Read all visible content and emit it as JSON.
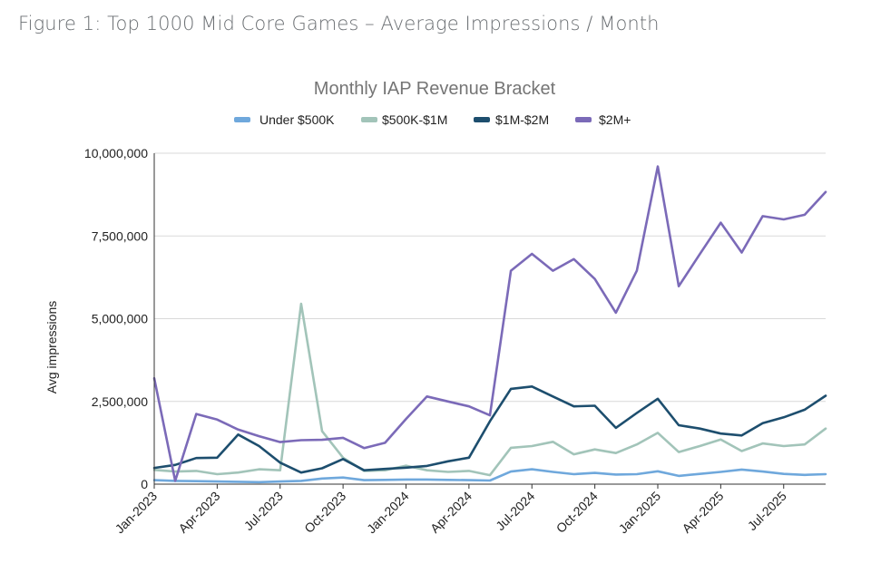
{
  "figure": {
    "caption": "Figure 1: Top 1000 Mid Core Games – Average Impressions / Month"
  },
  "chart_data": {
    "type": "line",
    "title": "Monthly IAP Revenue Bracket",
    "xlabel": "",
    "ylabel": "Avg impressions",
    "ylim": [
      0,
      10000000
    ],
    "yticks": [
      0,
      2500000,
      5000000,
      7500000,
      10000000
    ],
    "ytick_labels": [
      "0",
      "2,500,000",
      "5,000,000",
      "7,500,000",
      "10,000,000"
    ],
    "grid": true,
    "legend_position": "top-center",
    "x": [
      "Jan-2023",
      "Feb-2023",
      "Mar-2023",
      "Apr-2023",
      "May-2023",
      "Jun-2023",
      "Jul-2023",
      "Aug-2023",
      "Sep-2023",
      "Oct-2023",
      "Nov-2023",
      "Dec-2023",
      "Jan-2024",
      "Feb-2024",
      "Mar-2024",
      "Apr-2024",
      "May-2024",
      "Jun-2024",
      "Jul-2024",
      "Aug-2024",
      "Sep-2024",
      "Oct-2024",
      "Nov-2024",
      "Dec-2024",
      "Jan-2025",
      "Feb-2025",
      "Mar-2025",
      "Apr-2025",
      "May-2025",
      "Jun-2025",
      "Jul-2025",
      "Aug-2025",
      "Sep-2025"
    ],
    "xtick_labels": [
      "Jan-2023",
      "Apr-2023",
      "Jul-2023",
      "Oct-2023",
      "Jan-2024",
      "Apr-2024",
      "Jul-2024",
      "Oct-2024",
      "Jan-2025",
      "Apr-2025",
      "Jul-2025"
    ],
    "xtick_indices": [
      0,
      3,
      6,
      9,
      12,
      15,
      18,
      21,
      24,
      27,
      30
    ],
    "series": [
      {
        "name": "Under $500K",
        "color": "#6fa8dc",
        "values": [
          120000,
          100000,
          90000,
          80000,
          70000,
          60000,
          80000,
          100000,
          170000,
          200000,
          120000,
          130000,
          140000,
          140000,
          130000,
          120000,
          110000,
          380000,
          450000,
          370000,
          300000,
          340000,
          290000,
          300000,
          390000,
          250000,
          310000,
          370000,
          440000,
          380000,
          310000,
          280000,
          300000
        ]
      },
      {
        "name": "$500K-$1M",
        "color": "#a2c4b9",
        "values": [
          430000,
          380000,
          400000,
          300000,
          350000,
          450000,
          420000,
          5450000,
          1600000,
          800000,
          400000,
          420000,
          560000,
          420000,
          370000,
          400000,
          270000,
          1100000,
          1150000,
          1280000,
          900000,
          1050000,
          940000,
          1200000,
          1550000,
          970000,
          1150000,
          1350000,
          1000000,
          1230000,
          1150000,
          1200000,
          1680000
        ]
      },
      {
        "name": "$1M-$2M",
        "color": "#1d4e6e",
        "values": [
          490000,
          580000,
          790000,
          800000,
          1500000,
          1150000,
          650000,
          350000,
          480000,
          760000,
          420000,
          460000,
          500000,
          550000,
          690000,
          800000,
          1900000,
          2880000,
          2950000,
          2650000,
          2350000,
          2370000,
          1700000,
          2150000,
          2580000,
          1780000,
          1680000,
          1530000,
          1470000,
          1840000,
          2020000,
          2250000,
          2670000
        ]
      },
      {
        "name": "$2M+",
        "color": "#7b6ab8",
        "values": [
          3200000,
          100000,
          2120000,
          1950000,
          1650000,
          1450000,
          1270000,
          1330000,
          1340000,
          1400000,
          1090000,
          1250000,
          1970000,
          2650000,
          2500000,
          2350000,
          2080000,
          6450000,
          6960000,
          6450000,
          6800000,
          6200000,
          5180000,
          6450000,
          9600000,
          5980000,
          6950000,
          7900000,
          7000000,
          8100000,
          8000000,
          8140000,
          8830000
        ]
      }
    ]
  }
}
